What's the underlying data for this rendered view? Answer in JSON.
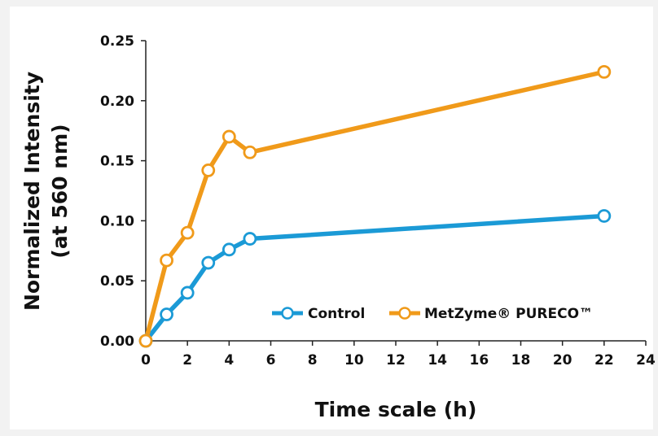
{
  "chart_data": {
    "type": "line",
    "title": "",
    "xlabel": "Time scale (h)",
    "ylabel_line1": "Normalized Intensity",
    "ylabel_line2": "(at 560 nm)",
    "xlim": [
      0,
      24
    ],
    "ylim": [
      0,
      0.25
    ],
    "xticks": [
      0,
      2,
      4,
      6,
      8,
      10,
      12,
      14,
      16,
      18,
      20,
      22,
      24
    ],
    "yticks": [
      "0.00",
      "0.05",
      "0.10",
      "0.15",
      "0.20",
      "0.25"
    ],
    "grid": false,
    "legend_position": "bottom-right",
    "series": [
      {
        "name": "Control",
        "color": "#1b9ad6",
        "x": [
          0,
          1,
          2,
          3,
          4,
          5,
          22
        ],
        "y": [
          0.0,
          0.022,
          0.04,
          0.065,
          0.076,
          0.085,
          0.104
        ]
      },
      {
        "name": "MetZyme® PURECO™",
        "color": "#f09a1a",
        "x": [
          0,
          1,
          2,
          3,
          4,
          5,
          22
        ],
        "y": [
          0.0,
          0.067,
          0.09,
          0.142,
          0.17,
          0.157,
          0.224
        ]
      }
    ]
  }
}
